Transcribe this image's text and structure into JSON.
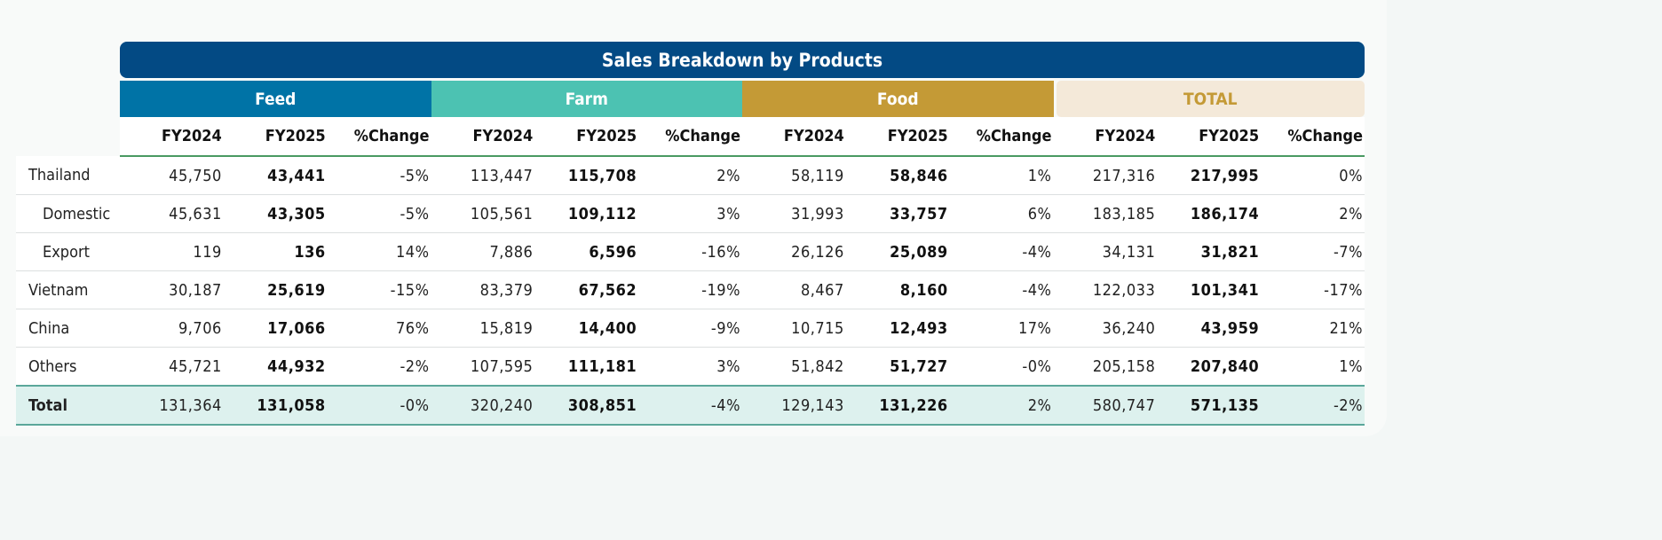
{
  "title": "Sales Breakdown by Products",
  "groups": [
    "Feed",
    "Farm",
    "Food",
    "TOTAL"
  ],
  "columns": [
    "FY2024",
    "FY2025",
    "%Change"
  ],
  "rows": [
    {
      "label": "Thailand",
      "sub": false,
      "v": [
        "45,750",
        "43,441",
        "-5%",
        "113,447",
        "115,708",
        "2%",
        "58,119",
        "58,846",
        "1%",
        "217,316",
        "217,995",
        "0%"
      ]
    },
    {
      "label": "Domestic",
      "sub": true,
      "v": [
        "45,631",
        "43,305",
        "-5%",
        "105,561",
        "109,112",
        "3%",
        "31,993",
        "33,757",
        "6%",
        "183,185",
        "186,174",
        "2%"
      ]
    },
    {
      "label": "Export",
      "sub": true,
      "v": [
        "119",
        "136",
        "14%",
        "7,886",
        "6,596",
        "-16%",
        "26,126",
        "25,089",
        "-4%",
        "34,131",
        "31,821",
        "-7%"
      ]
    },
    {
      "label": "Vietnam",
      "sub": false,
      "v": [
        "30,187",
        "25,619",
        "-15%",
        "83,379",
        "67,562",
        "-19%",
        "8,467",
        "8,160",
        "-4%",
        "122,033",
        "101,341",
        "-17%"
      ]
    },
    {
      "label": "China",
      "sub": false,
      "v": [
        "9,706",
        "17,066",
        "76%",
        "15,819",
        "14,400",
        "-9%",
        "10,715",
        "12,493",
        "17%",
        "36,240",
        "43,959",
        "21%"
      ]
    },
    {
      "label": "Others",
      "sub": false,
      "v": [
        "45,721",
        "44,932",
        "-2%",
        "107,595",
        "111,181",
        "3%",
        "51,842",
        "51,727",
        "-0%",
        "205,158",
        "207,840",
        "1%"
      ]
    },
    {
      "label": "Total",
      "sub": false,
      "total": true,
      "v": [
        "131,364",
        "131,058",
        "-0%",
        "320,240",
        "308,851",
        "-4%",
        "129,143",
        "131,226",
        "2%",
        "580,747",
        "571,135",
        "-2%"
      ]
    }
  ]
}
